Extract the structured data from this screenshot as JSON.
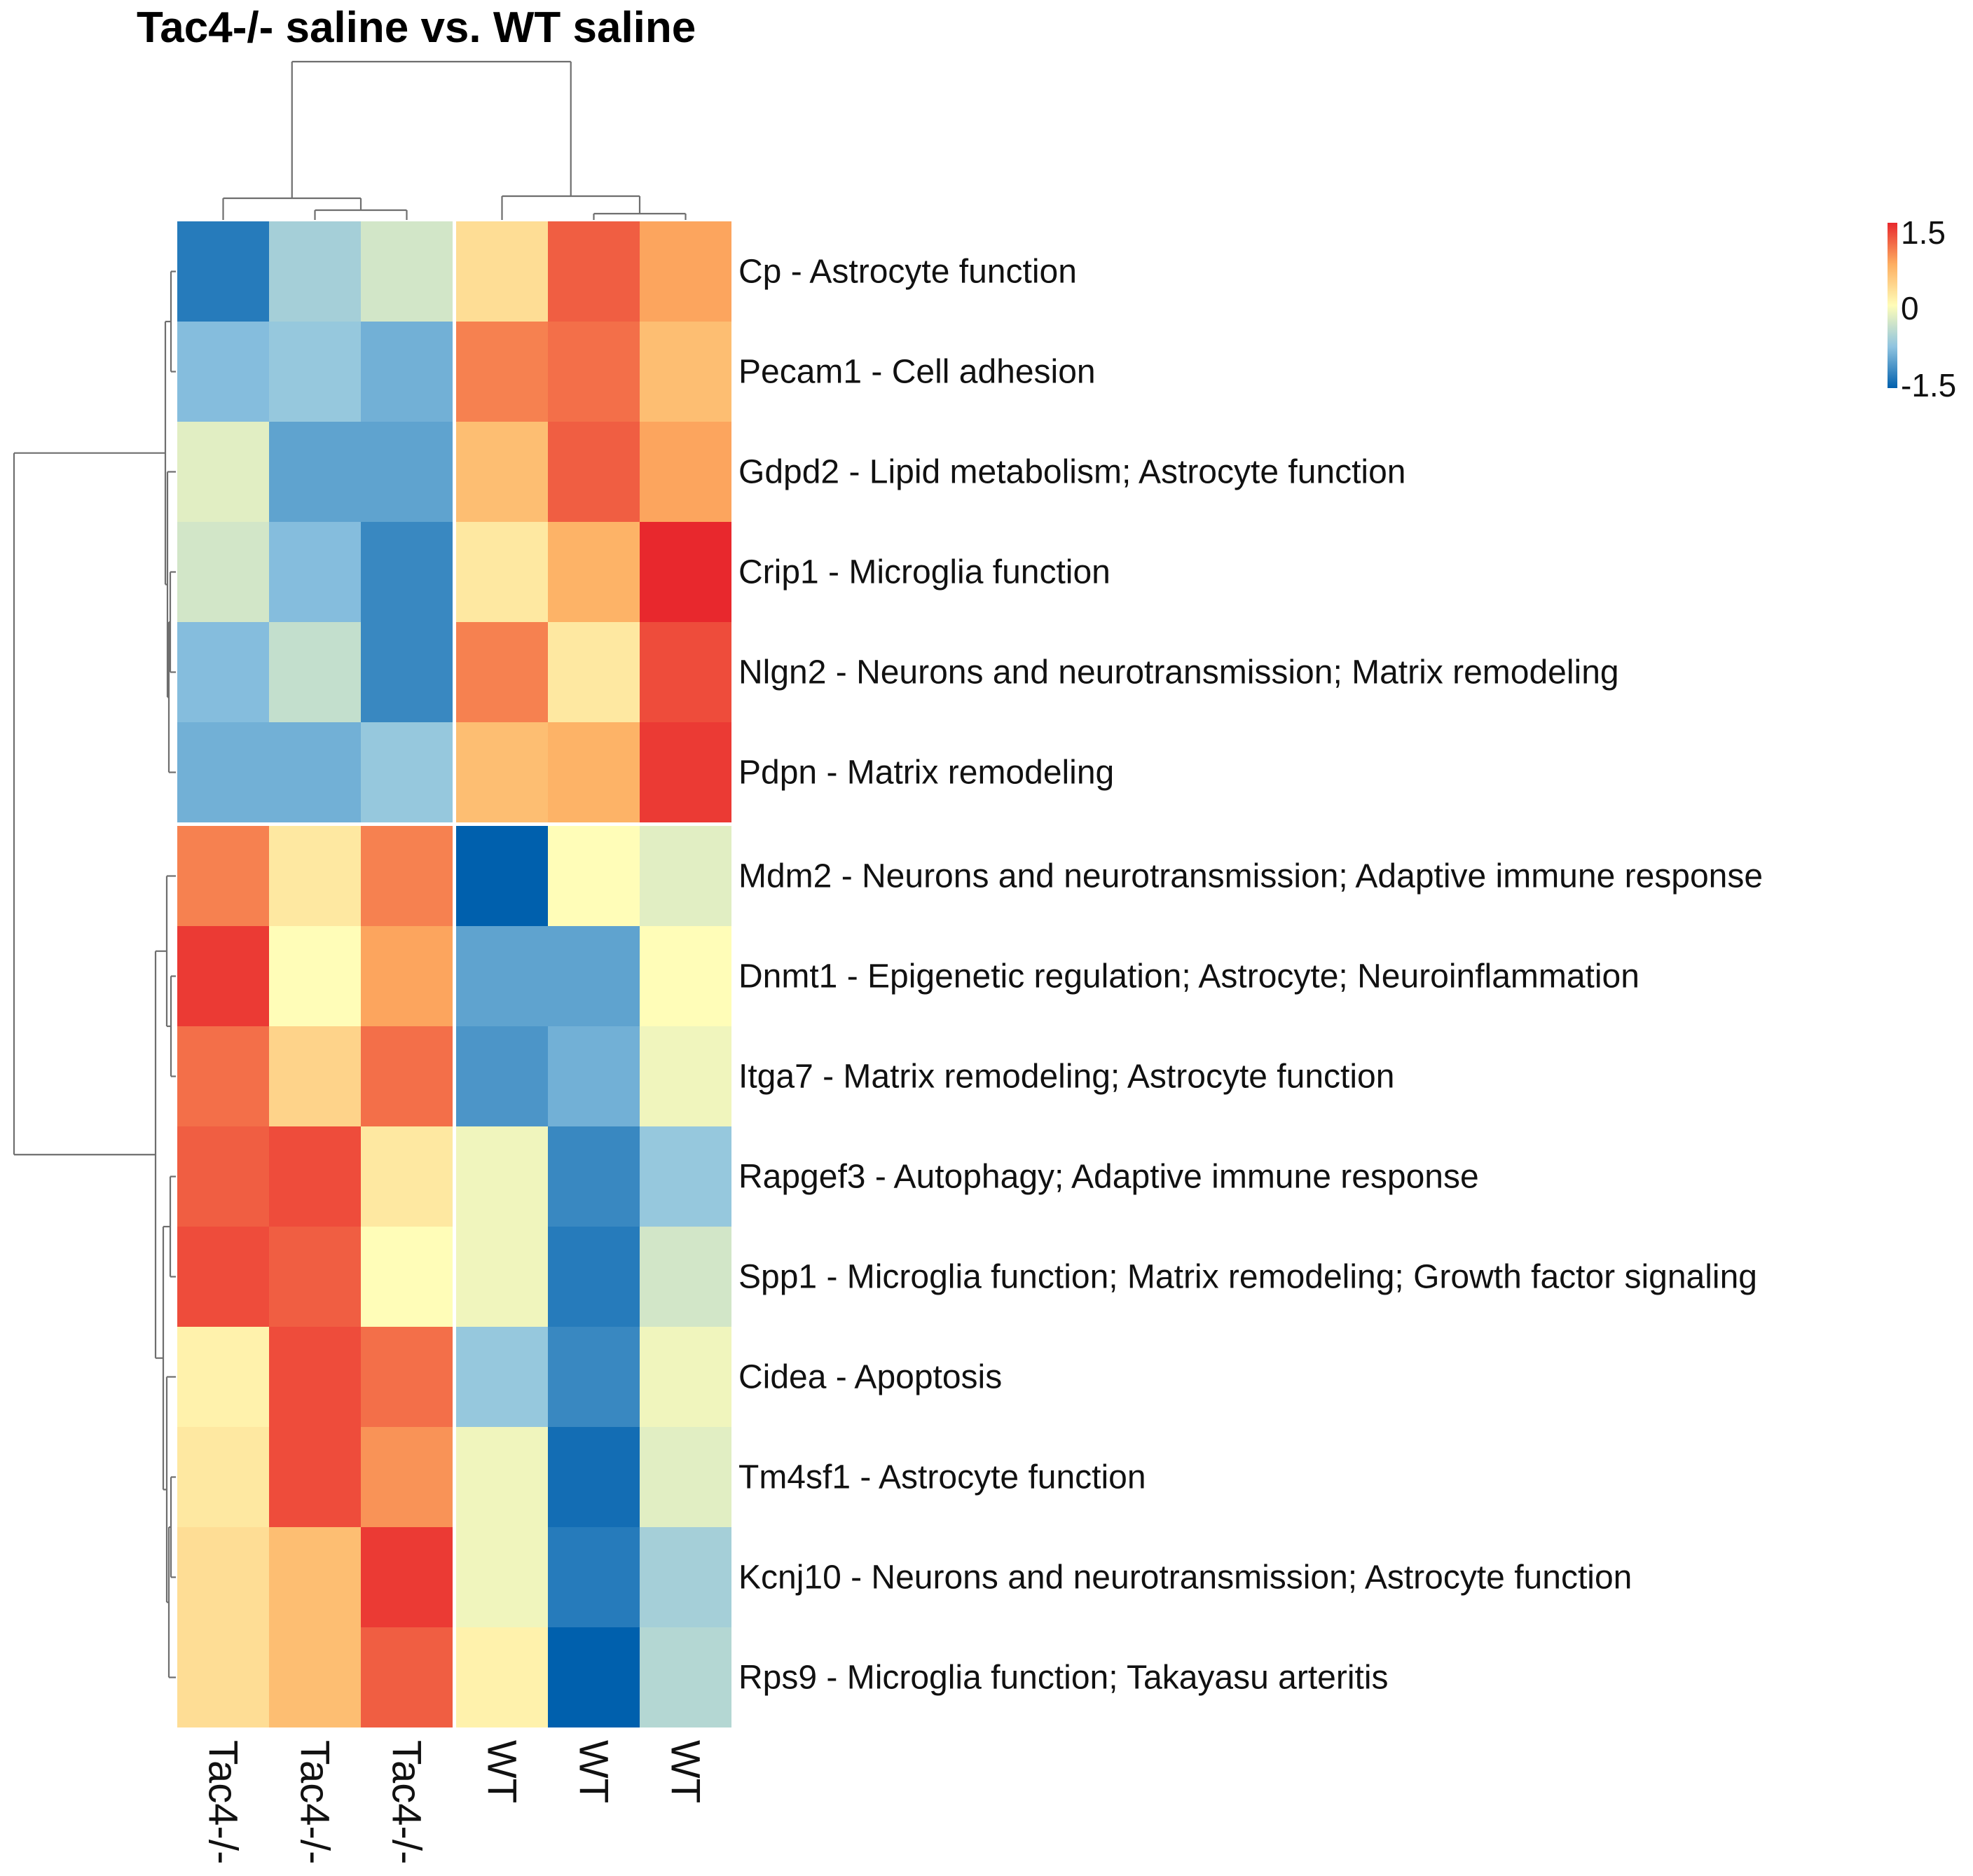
{
  "colors": {
    "low": "#0060ad",
    "mid_low": "#8fc4e0",
    "mid": "#fffdb8",
    "mid_high": "#fdae61",
    "high": "#e8282d",
    "gap": "#ffffff",
    "dendrogram": "#6e6e6e"
  },
  "chart_data": {
    "type": "heatmap",
    "title": "Tac4-/- saline vs. WT saline",
    "columns": [
      "Tac4-/-",
      "Tac4-/-",
      "Tac4-/-",
      "WT",
      "WT",
      "WT"
    ],
    "rows": [
      "Cp - Astrocyte function",
      "Pecam1 - Cell adhesion",
      "Gdpd2 - Lipid metabolism; Astrocyte function",
      "Crip1 - Microglia function",
      "Nlgn2 - Neurons and neurotransmission; Matrix remodeling",
      "Pdpn - Matrix remodeling",
      "Mdm2 - Neurons and neurotransmission; Adaptive immune response",
      "Dnmt1 - Epigenetic regulation; Astrocyte; Neuroinflammation",
      "Itga7 - Matrix remodeling; Astrocyte function",
      "Rapgef3 - Autophagy; Adaptive immune response",
      "Spp1 - Microglia function; Matrix remodeling; Growth factor signaling",
      "Cidea - Apoptosis",
      "Tm4sf1 - Astrocyte function",
      "Kcnj10 - Neurons and neurotransmission; Astrocyte function",
      "Rps9 - Microglia function; Takayasu arteritis"
    ],
    "values": [
      [
        -1.3,
        -0.6,
        -0.3,
        0.3,
        1.2,
        0.8
      ],
      [
        -0.8,
        -0.7,
        -0.9,
        1.0,
        1.1,
        0.6
      ],
      [
        -0.2,
        -1.0,
        -1.0,
        0.6,
        1.2,
        0.8
      ],
      [
        -0.3,
        -0.8,
        -1.2,
        0.2,
        0.7,
        1.5
      ],
      [
        -0.8,
        -0.4,
        -1.2,
        1.0,
        0.2,
        1.3
      ],
      [
        -0.9,
        -0.9,
        -0.7,
        0.6,
        0.7,
        1.4
      ],
      [
        1.0,
        0.2,
        1.0,
        -1.5,
        0.0,
        -0.2
      ],
      [
        1.4,
        0.0,
        0.8,
        -1.0,
        -1.0,
        0.0
      ],
      [
        1.1,
        0.4,
        1.1,
        -1.1,
        -0.9,
        -0.1
      ],
      [
        1.2,
        1.3,
        0.2,
        -0.1,
        -1.2,
        -0.7
      ],
      [
        1.3,
        1.2,
        0.0,
        -0.1,
        -1.3,
        -0.3
      ],
      [
        0.1,
        1.3,
        1.1,
        -0.7,
        -1.2,
        -0.1
      ],
      [
        0.2,
        1.3,
        0.9,
        -0.1,
        -1.4,
        -0.2
      ],
      [
        0.3,
        0.6,
        1.4,
        -0.1,
        -1.3,
        -0.6
      ],
      [
        0.3,
        0.6,
        1.2,
        0.1,
        -1.5,
        -0.5
      ]
    ],
    "col_gap_after": 3,
    "row_gap_after": 6,
    "color_scale": {
      "min": -1.5,
      "mid": 0,
      "max": 1.5
    },
    "legend": {
      "position": "top-right",
      "ticks": [
        "1.5",
        "0",
        "-1.5"
      ]
    },
    "row_dendrogram": {
      "position": "left"
    },
    "column_dendrogram": {
      "position": "top"
    }
  }
}
